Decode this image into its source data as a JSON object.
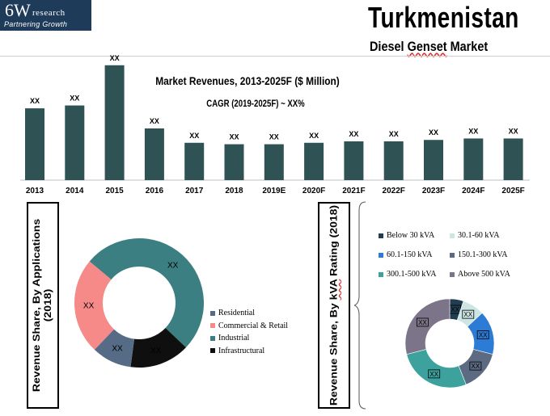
{
  "brand": {
    "logo_main": "6W",
    "logo_research": "research",
    "tagline": "Partnering Growth"
  },
  "header": {
    "title": "Turkmenistan",
    "subtitle_part1": "Diesel ",
    "subtitle_part2": "Genset",
    "subtitle_part3": " Market"
  },
  "chart_data": [
    {
      "type": "bar",
      "title": "Market Revenues, 2013-2025F ($ Million)",
      "subtitle": "CAGR (2019-2025F) ~ XX%",
      "categories": [
        "2013",
        "2014",
        "2015",
        "2016",
        "2017",
        "2018",
        "2019E",
        "2020F",
        "2021F",
        "2022F",
        "2023F",
        "2024F",
        "2025F"
      ],
      "values": [
        50,
        52,
        80,
        36,
        26,
        25,
        25,
        26,
        27,
        27,
        28,
        29,
        29
      ],
      "data_labels": [
        "XX",
        "XX",
        "XX",
        "XX",
        "XX",
        "XX",
        "XX",
        "XX",
        "XX",
        "XX",
        "XX",
        "XX",
        "XX"
      ],
      "color": "#2f5254",
      "xlabel": "",
      "ylabel": "",
      "ylim": [
        0,
        90
      ],
      "grid": false
    },
    {
      "type": "pie",
      "subtype": "donut",
      "label": "Revenue Share, By Applications",
      "label_year": "(2018)",
      "categories": [
        "Residential",
        "Commercial & Retail",
        "Industrial",
        "Infrastructural"
      ],
      "values": [
        10,
        24,
        51,
        15
      ],
      "data_labels": [
        "XX",
        "XX",
        "XX",
        "XX"
      ],
      "colors": [
        "#566c86",
        "#f58a89",
        "#3b7f82",
        "#0f0f0f"
      ],
      "legend_position": "right"
    },
    {
      "type": "pie",
      "subtype": "donut",
      "label_part1": "Revenue Share, By ",
      "label_part2": "kVA",
      "label_part3": " Rating (2018)",
      "categories": [
        "Below 30 kVA",
        "30.1-60 kVA",
        "60.1-150 kVA",
        "150.1-300 kVA",
        "300.1-500 kVA",
        "Above 500 kVA"
      ],
      "values": [
        5,
        8,
        16,
        15,
        27,
        29
      ],
      "data_labels": [
        "XX",
        "XX",
        "XX",
        "XX",
        "XX",
        "XX"
      ],
      "colors": [
        "#213d4f",
        "#cde6e4",
        "#2c7cd6",
        "#5c6b82",
        "#3da29d",
        "#7c7488"
      ],
      "legend_position": "top"
    }
  ]
}
